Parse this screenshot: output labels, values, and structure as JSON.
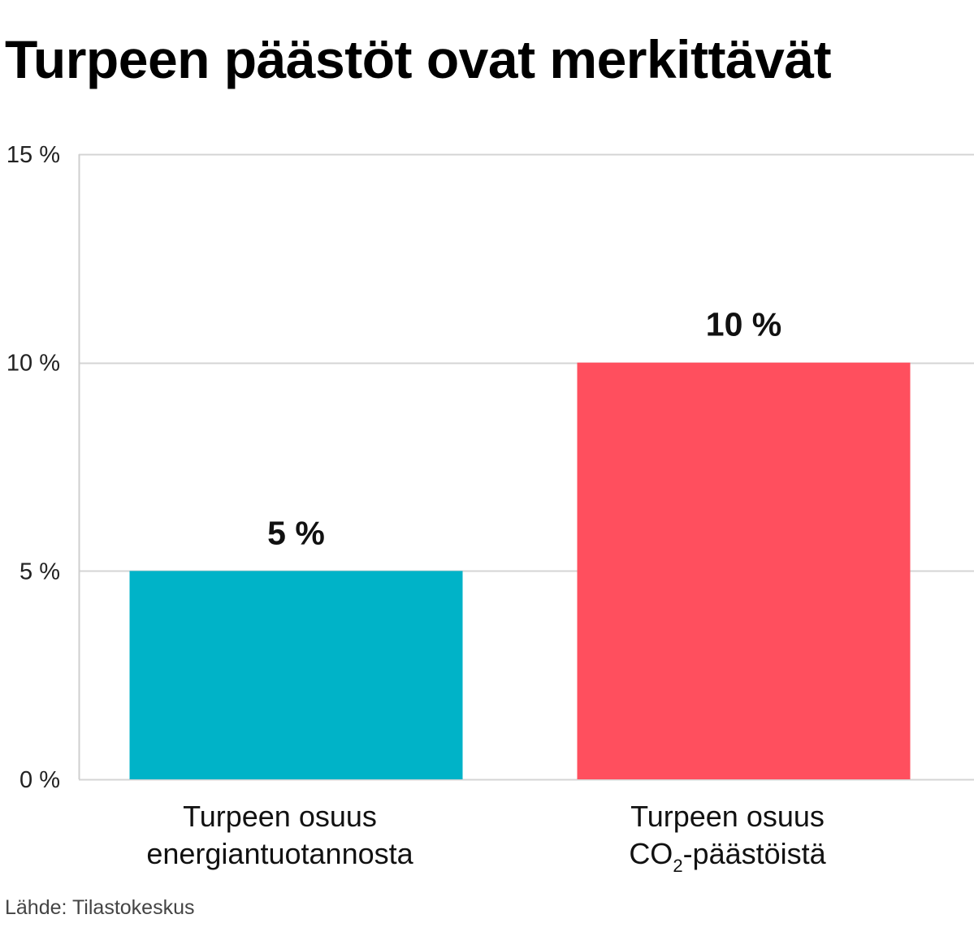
{
  "title": "Turpeen päästöt ovat merkittävät",
  "source": "Lähde: Tilastokeskus",
  "chart_data": {
    "type": "bar",
    "title": "Turpeen päästöt ovat merkittävät",
    "xlabel": "",
    "ylabel": "",
    "ylim": [
      0,
      15
    ],
    "y_ticks": [
      0,
      5,
      10,
      15
    ],
    "y_tick_labels": [
      "0 %",
      "5 %",
      "10 %",
      "15 %"
    ],
    "grid": true,
    "categories": [
      [
        "Turpeen osuus",
        "energiantuotannosta"
      ],
      [
        "Turpeen osuus",
        "CO",
        "2",
        "-päästöistä"
      ]
    ],
    "values": [
      5,
      10
    ],
    "data_labels": [
      "5 %",
      "10 %"
    ],
    "colors": [
      "#00b3c8",
      "#ff4f5e"
    ]
  }
}
